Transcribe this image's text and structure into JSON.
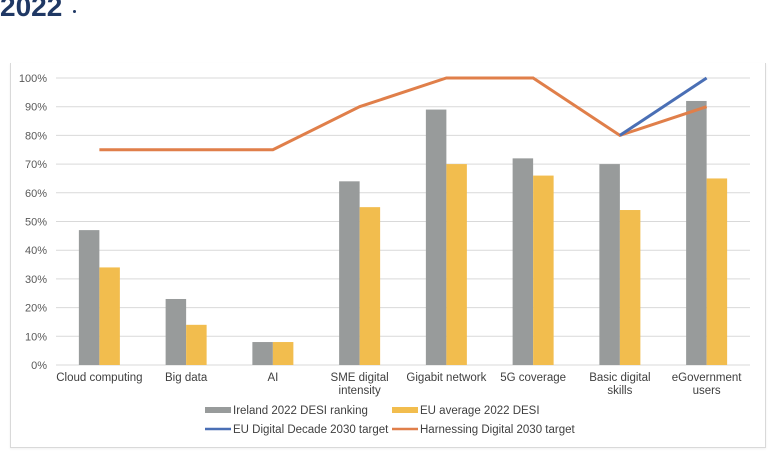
{
  "header": {
    "title": "2022"
  },
  "chart_data": {
    "type": "bar",
    "title": "",
    "xlabel": "",
    "ylabel": "",
    "ylim": [
      0,
      100
    ],
    "y_ticks": [
      "0%",
      "10%",
      "20%",
      "30%",
      "40%",
      "50%",
      "60%",
      "70%",
      "80%",
      "90%",
      "100%"
    ],
    "grid": true,
    "legend_position": "bottom",
    "categories": [
      [
        "Cloud computing"
      ],
      [
        "Big data"
      ],
      [
        "AI"
      ],
      [
        "SME digital",
        "intensity"
      ],
      [
        "Gigabit network"
      ],
      [
        "5G coverage"
      ],
      [
        "Basic digital",
        "skills"
      ],
      [
        "eGovernment",
        "users"
      ]
    ],
    "category_names": [
      "Cloud computing",
      "Big data",
      "AI",
      "SME digital intensity",
      "Gigabit network",
      "5G coverage",
      "Basic digital skills",
      "eGovernment users"
    ],
    "series": [
      {
        "name": "Ireland 2022 DESI ranking",
        "kind": "bar",
        "color": "#989b9b",
        "values": [
          47,
          23,
          8,
          64,
          89,
          72,
          70,
          92
        ]
      },
      {
        "name": "EU average 2022 DESI",
        "kind": "bar",
        "color": "#f2bd4e",
        "values": [
          34,
          14,
          8,
          55,
          70,
          66,
          54,
          65
        ]
      },
      {
        "name": "EU Digital Decade 2030 target",
        "kind": "line",
        "color": "#4a6fb5",
        "values": [
          null,
          null,
          null,
          null,
          null,
          null,
          80,
          100
        ]
      },
      {
        "name": "Harnessing Digital 2030 target",
        "kind": "line",
        "color": "#e07f4a",
        "values": [
          75,
          75,
          75,
          90,
          100,
          100,
          80,
          90
        ]
      }
    ]
  }
}
